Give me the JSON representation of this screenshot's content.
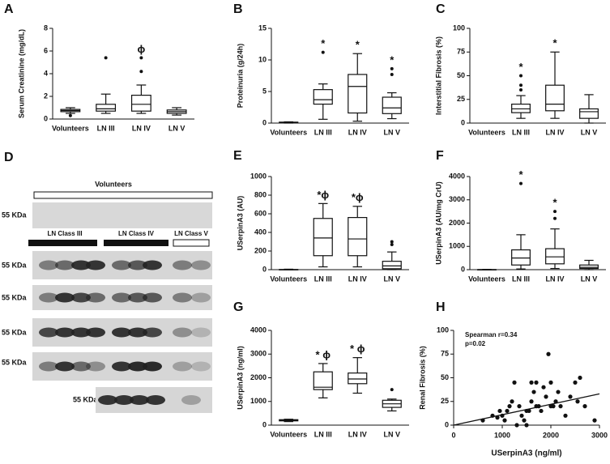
{
  "chart_data": [
    {
      "type": "box",
      "panel": "A",
      "ylabel": "Serum Creatinine (mg/dL)",
      "categories": [
        "Volunteers",
        "LN III",
        "LN IV",
        "LN V"
      ],
      "ylim": [
        0,
        8
      ],
      "yticks": [
        0,
        2,
        4,
        6,
        8
      ],
      "boxes": [
        {
          "min": 0.5,
          "q1": 0.65,
          "median": 0.75,
          "q3": 0.85,
          "max": 1.0,
          "outliers": [
            0.3
          ]
        },
        {
          "min": 0.5,
          "q1": 0.7,
          "median": 0.9,
          "q3": 1.3,
          "max": 2.2,
          "outliers": [
            5.4
          ]
        },
        {
          "min": 0.5,
          "q1": 0.7,
          "median": 1.3,
          "q3": 2.1,
          "max": 3.0,
          "outliers": [
            4.2,
            5.4
          ]
        },
        {
          "min": 0.35,
          "q1": 0.5,
          "median": 0.65,
          "q3": 0.8,
          "max": 1.0,
          "outliers": []
        }
      ],
      "annotations": [
        null,
        null,
        "ϕ",
        null
      ]
    },
    {
      "type": "box",
      "panel": "B",
      "ylabel": "Proteinuria (g/24h)",
      "categories": [
        "Volunteers",
        "LN III",
        "LN IV",
        "LN V"
      ],
      "ylim": [
        0,
        15
      ],
      "yticks": [
        0,
        5,
        10,
        15
      ],
      "boxes": [
        {
          "min": 0,
          "q1": 0.05,
          "median": 0.1,
          "q3": 0.15,
          "max": 0.2,
          "outliers": []
        },
        {
          "min": 0.6,
          "q1": 3,
          "median": 3.7,
          "q3": 5.3,
          "max": 6.2,
          "outliers": [
            11.2
          ]
        },
        {
          "min": 0.3,
          "q1": 1.6,
          "median": 5.8,
          "q3": 7.7,
          "max": 11,
          "outliers": []
        },
        {
          "min": 0.7,
          "q1": 1.5,
          "median": 2.4,
          "q3": 4.1,
          "max": 4.8,
          "outliers": [
            7.7,
            8.6
          ]
        }
      ],
      "annotations": [
        null,
        "*",
        "*",
        "*"
      ]
    },
    {
      "type": "box",
      "panel": "C",
      "ylabel": "Interstitial Fibrosis (%)",
      "categories": [
        "Volunteers",
        "LN III",
        "LN IV",
        "LN V"
      ],
      "ylim": [
        0,
        100
      ],
      "yticks": [
        0,
        25,
        50,
        75,
        100
      ],
      "boxes": [
        null,
        {
          "min": 5,
          "q1": 11,
          "median": 15,
          "q3": 20,
          "max": 29,
          "outliers": [
            35,
            40,
            50
          ]
        },
        {
          "min": 5,
          "q1": 13,
          "median": 20,
          "q3": 40,
          "max": 75,
          "outliers": []
        },
        {
          "min": 0,
          "q1": 5,
          "median": 12,
          "q3": 15,
          "max": 30,
          "outliers": []
        }
      ],
      "annotations": [
        null,
        "*",
        "*",
        null
      ]
    },
    {
      "type": "box",
      "panel": "E",
      "ylabel": "USerpinA3  (AU)",
      "categories": [
        "Volunteers",
        "LN III",
        "LN IV",
        "LN V"
      ],
      "ylim": [
        0,
        1000
      ],
      "yticks": [
        0,
        200,
        400,
        600,
        800,
        1000
      ],
      "boxes": [
        {
          "min": 0,
          "q1": 0,
          "median": 0,
          "q3": 2,
          "max": 5,
          "outliers": []
        },
        {
          "min": 30,
          "q1": 150,
          "median": 340,
          "q3": 550,
          "max": 710,
          "outliers": []
        },
        {
          "min": 30,
          "q1": 150,
          "median": 330,
          "q3": 560,
          "max": 680,
          "outliers": []
        },
        {
          "min": 0,
          "q1": 10,
          "median": 40,
          "q3": 90,
          "max": 190,
          "outliers": [
            270,
            300
          ]
        }
      ],
      "annotations": [
        null,
        "*ϕ",
        "*ϕ",
        null
      ]
    },
    {
      "type": "box",
      "panel": "F",
      "ylabel": "USerpinA3  (AU/mg CrU)",
      "categories": [
        "Volunteers",
        "LN III",
        "LN IV",
        "LN V"
      ],
      "ylim": [
        0,
        4000
      ],
      "yticks": [
        0,
        1000,
        2000,
        3000,
        4000
      ],
      "boxes": [
        {
          "min": 0,
          "q1": 0,
          "median": 0,
          "q3": 5,
          "max": 10,
          "outliers": []
        },
        {
          "min": 30,
          "q1": 200,
          "median": 500,
          "q3": 850,
          "max": 1500,
          "outliers": [
            3700
          ]
        },
        {
          "min": 50,
          "q1": 250,
          "median": 550,
          "q3": 900,
          "max": 1750,
          "outliers": [
            2200,
            2500
          ]
        },
        {
          "min": 0,
          "q1": 50,
          "median": 100,
          "q3": 200,
          "max": 400,
          "outliers": []
        }
      ],
      "annotations": [
        null,
        "*",
        "*",
        null
      ]
    },
    {
      "type": "box",
      "panel": "G",
      "ylabel": "USerpinA3  (ng/ml)",
      "categories": [
        "Volunteers",
        "LN III",
        "LN IV",
        "LN V"
      ],
      "ylim": [
        0,
        4000
      ],
      "yticks": [
        0,
        1000,
        2000,
        3000,
        4000
      ],
      "boxes": [
        {
          "min": 150,
          "q1": 180,
          "median": 200,
          "q3": 230,
          "max": 250,
          "outliers": []
        },
        {
          "min": 1150,
          "q1": 1500,
          "median": 1600,
          "q3": 2250,
          "max": 2600,
          "outliers": []
        },
        {
          "min": 1350,
          "q1": 1750,
          "median": 1950,
          "q3": 2200,
          "max": 2850,
          "outliers": []
        },
        {
          "min": 600,
          "q1": 750,
          "median": 900,
          "q3": 1050,
          "max": 1100,
          "outliers": [
            1500
          ]
        }
      ],
      "annotations": [
        null,
        "* ϕ",
        "* ϕ",
        null
      ]
    },
    {
      "type": "scatter",
      "panel": "H",
      "xlabel": "USerpinA3 (ng/ml)",
      "ylabel": "Renal Fibrosis (%)",
      "xlim": [
        0,
        3000
      ],
      "xticks": [
        0,
        1000,
        2000,
        3000
      ],
      "ylim": [
        0,
        100
      ],
      "yticks": [
        0,
        25,
        50,
        75,
        100
      ],
      "annotations": [
        "Spearman r=0.34",
        "p=0.02"
      ],
      "x": [
        600,
        800,
        900,
        950,
        1000,
        1050,
        1100,
        1200,
        1250,
        1300,
        1350,
        1400,
        1450,
        1500,
        1550,
        1600,
        1650,
        1700,
        1750,
        1800,
        1850,
        1900,
        1950,
        2000,
        2050,
        2100,
        2150,
        2200,
        2300,
        2400,
        2500,
        2550,
        2600,
        2700,
        2900,
        1150,
        1500,
        1700,
        2000,
        1600
      ],
      "y": [
        5,
        10,
        8,
        15,
        10,
        5,
        15,
        25,
        45,
        0,
        20,
        10,
        5,
        15,
        15,
        25,
        35,
        45,
        20,
        15,
        40,
        30,
        75,
        45,
        20,
        25,
        35,
        20,
        10,
        30,
        45,
        25,
        50,
        20,
        5,
        20,
        0,
        20,
        20,
        45
      ],
      "fit": {
        "x": [
          0,
          3000
        ],
        "y": [
          0,
          33
        ]
      }
    }
  ],
  "blot": {
    "panel": "D",
    "header": "Volunteers",
    "groups": [
      "LN Class III",
      "LN Class IV",
      "LN Class V"
    ],
    "marker_labels": [
      "55 KDa",
      "55 KDa",
      "55 KDa",
      "55 KDa",
      "55 KDa",
      "55 KDa"
    ]
  }
}
